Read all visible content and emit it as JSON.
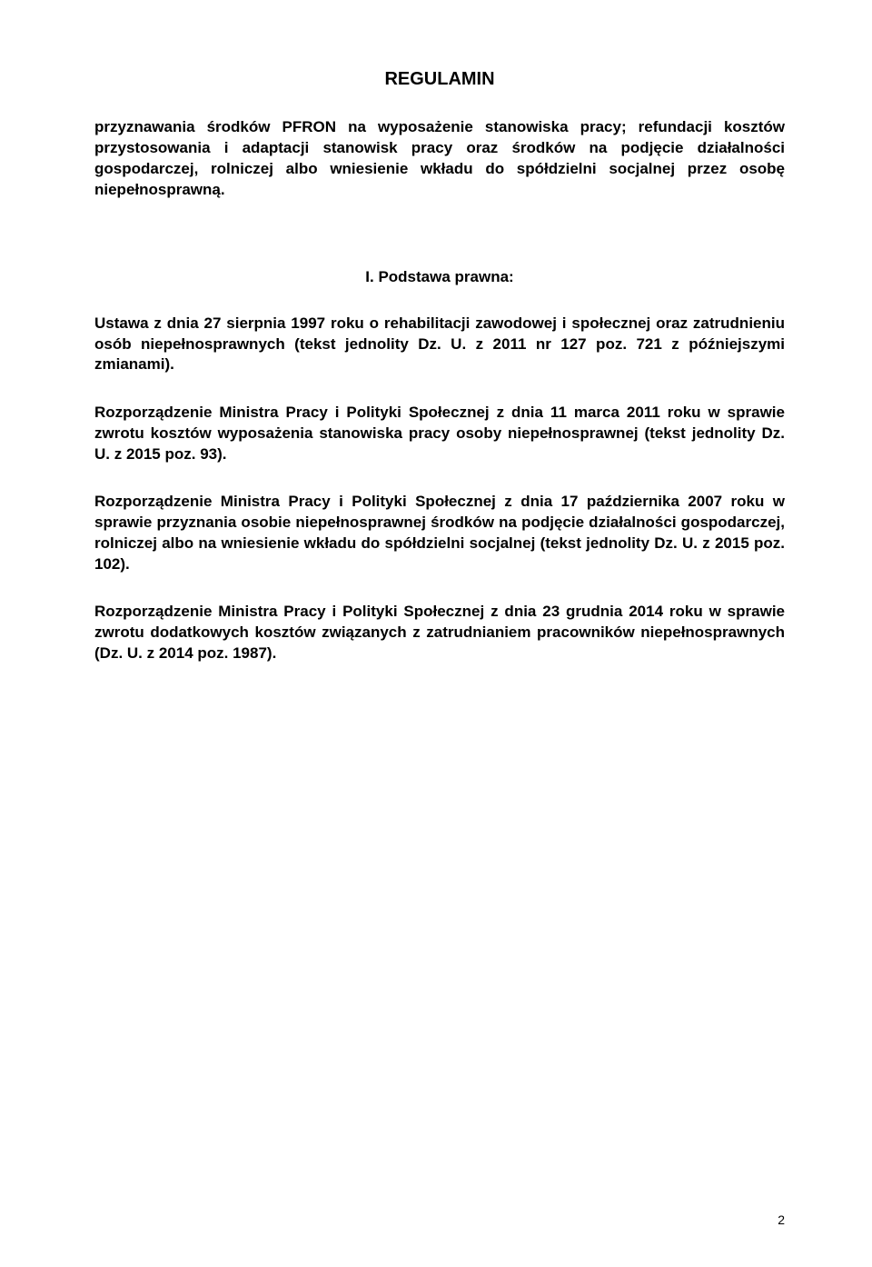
{
  "document": {
    "title": "REGULAMIN",
    "subtitle": "przyznawania środków PFRON na wyposażenie stanowiska pracy; refundacji kosztów przystosowania i adaptacji stanowisk pracy oraz środków na podjęcie działalności gospodarczej, rolniczej albo wniesienie wkładu do spółdzielni socjalnej przez osobę niepełnosprawną.",
    "section_header": "I. Podstawa prawna:",
    "paragraphs": [
      "Ustawa z dnia 27 sierpnia 1997 roku o rehabilitacji zawodowej i społecznej oraz zatrudnieniu osób niepełnosprawnych (tekst jednolity Dz. U. z 2011 nr 127 poz. 721 z późniejszymi zmianami).",
      "Rozporządzenie Ministra Pracy  i Polityki Społecznej  z dnia 11 marca 2011 roku w sprawie zwrotu kosztów wyposażenia stanowiska pracy osoby niepełnosprawnej (tekst jednolity Dz. U. z 2015 poz. 93).",
      "Rozporządzenie Ministra Pracy i Polityki Społecznej z dnia 17 października 2007 roku w sprawie przyznania osobie niepełnosprawnej środków na podjęcie działalności gospodarczej, rolniczej albo na wniesienie wkładu do spółdzielni socjalnej  (tekst jednolity Dz. U. z 2015 poz. 102).",
      "Rozporządzenie Ministra Pracy i Polityki Społecznej z dnia 23 grudnia 2014 roku w sprawie zwrotu dodatkowych kosztów związanych z zatrudnianiem pracowników niepełnosprawnych (Dz. U. z 2014 poz. 1987)."
    ],
    "page_number": "2",
    "colors": {
      "background": "#ffffff",
      "text": "#000000"
    },
    "typography": {
      "font_family": "Verdana",
      "title_fontsize": 20,
      "body_fontsize": 17,
      "pagenum_fontsize": 14,
      "weight": "bold"
    }
  }
}
